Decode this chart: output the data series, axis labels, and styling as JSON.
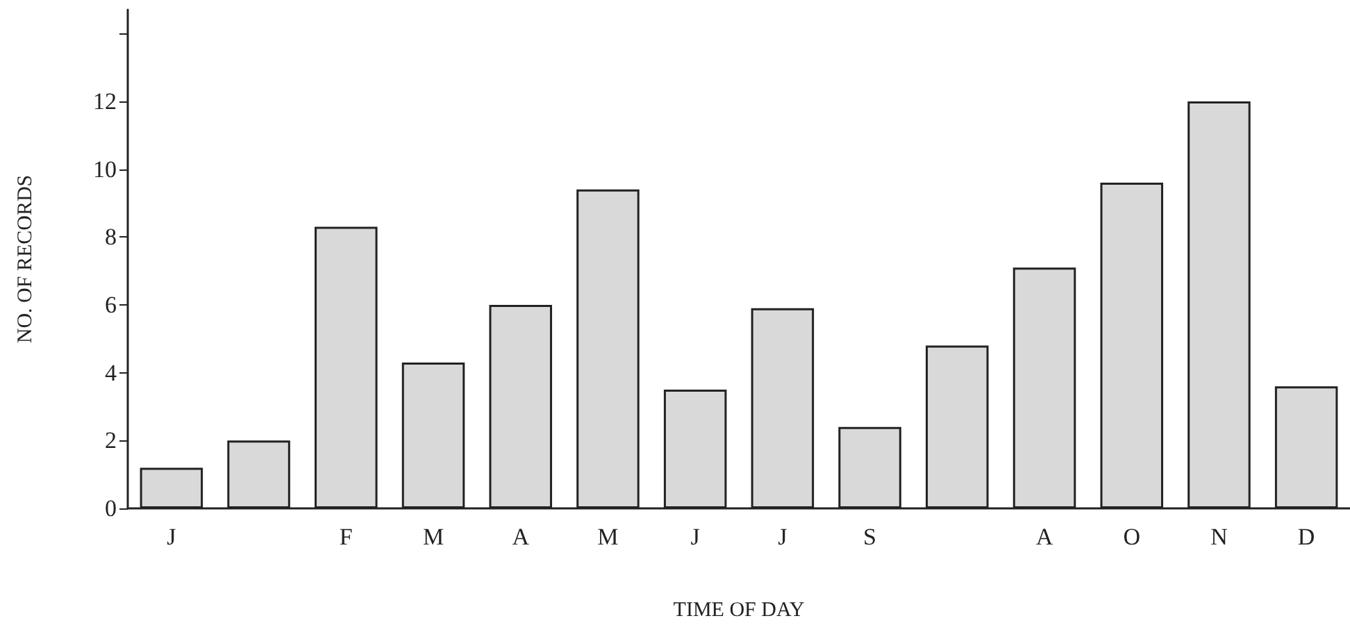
{
  "chart_data": {
    "type": "bar",
    "xlabel": "TIME OF DAY",
    "ylabel": "NO. OF RECORDS",
    "categories": [
      "J",
      null,
      "F",
      "M",
      "A",
      "M",
      "J",
      "J",
      "S",
      null,
      "A",
      "O",
      "N",
      "D"
    ],
    "values": [
      1.2,
      2.0,
      8.3,
      4.3,
      6.0,
      9.4,
      3.5,
      5.9,
      2.4,
      4.8,
      7.1,
      9.6,
      12.0,
      3.6
    ],
    "color": "#d9d9d9",
    "ylim": [
      0,
      14.7
    ],
    "yticks": [
      0,
      2,
      4,
      6,
      8,
      10,
      12,
      {
        "value": 14,
        "label": null
      }
    ]
  }
}
